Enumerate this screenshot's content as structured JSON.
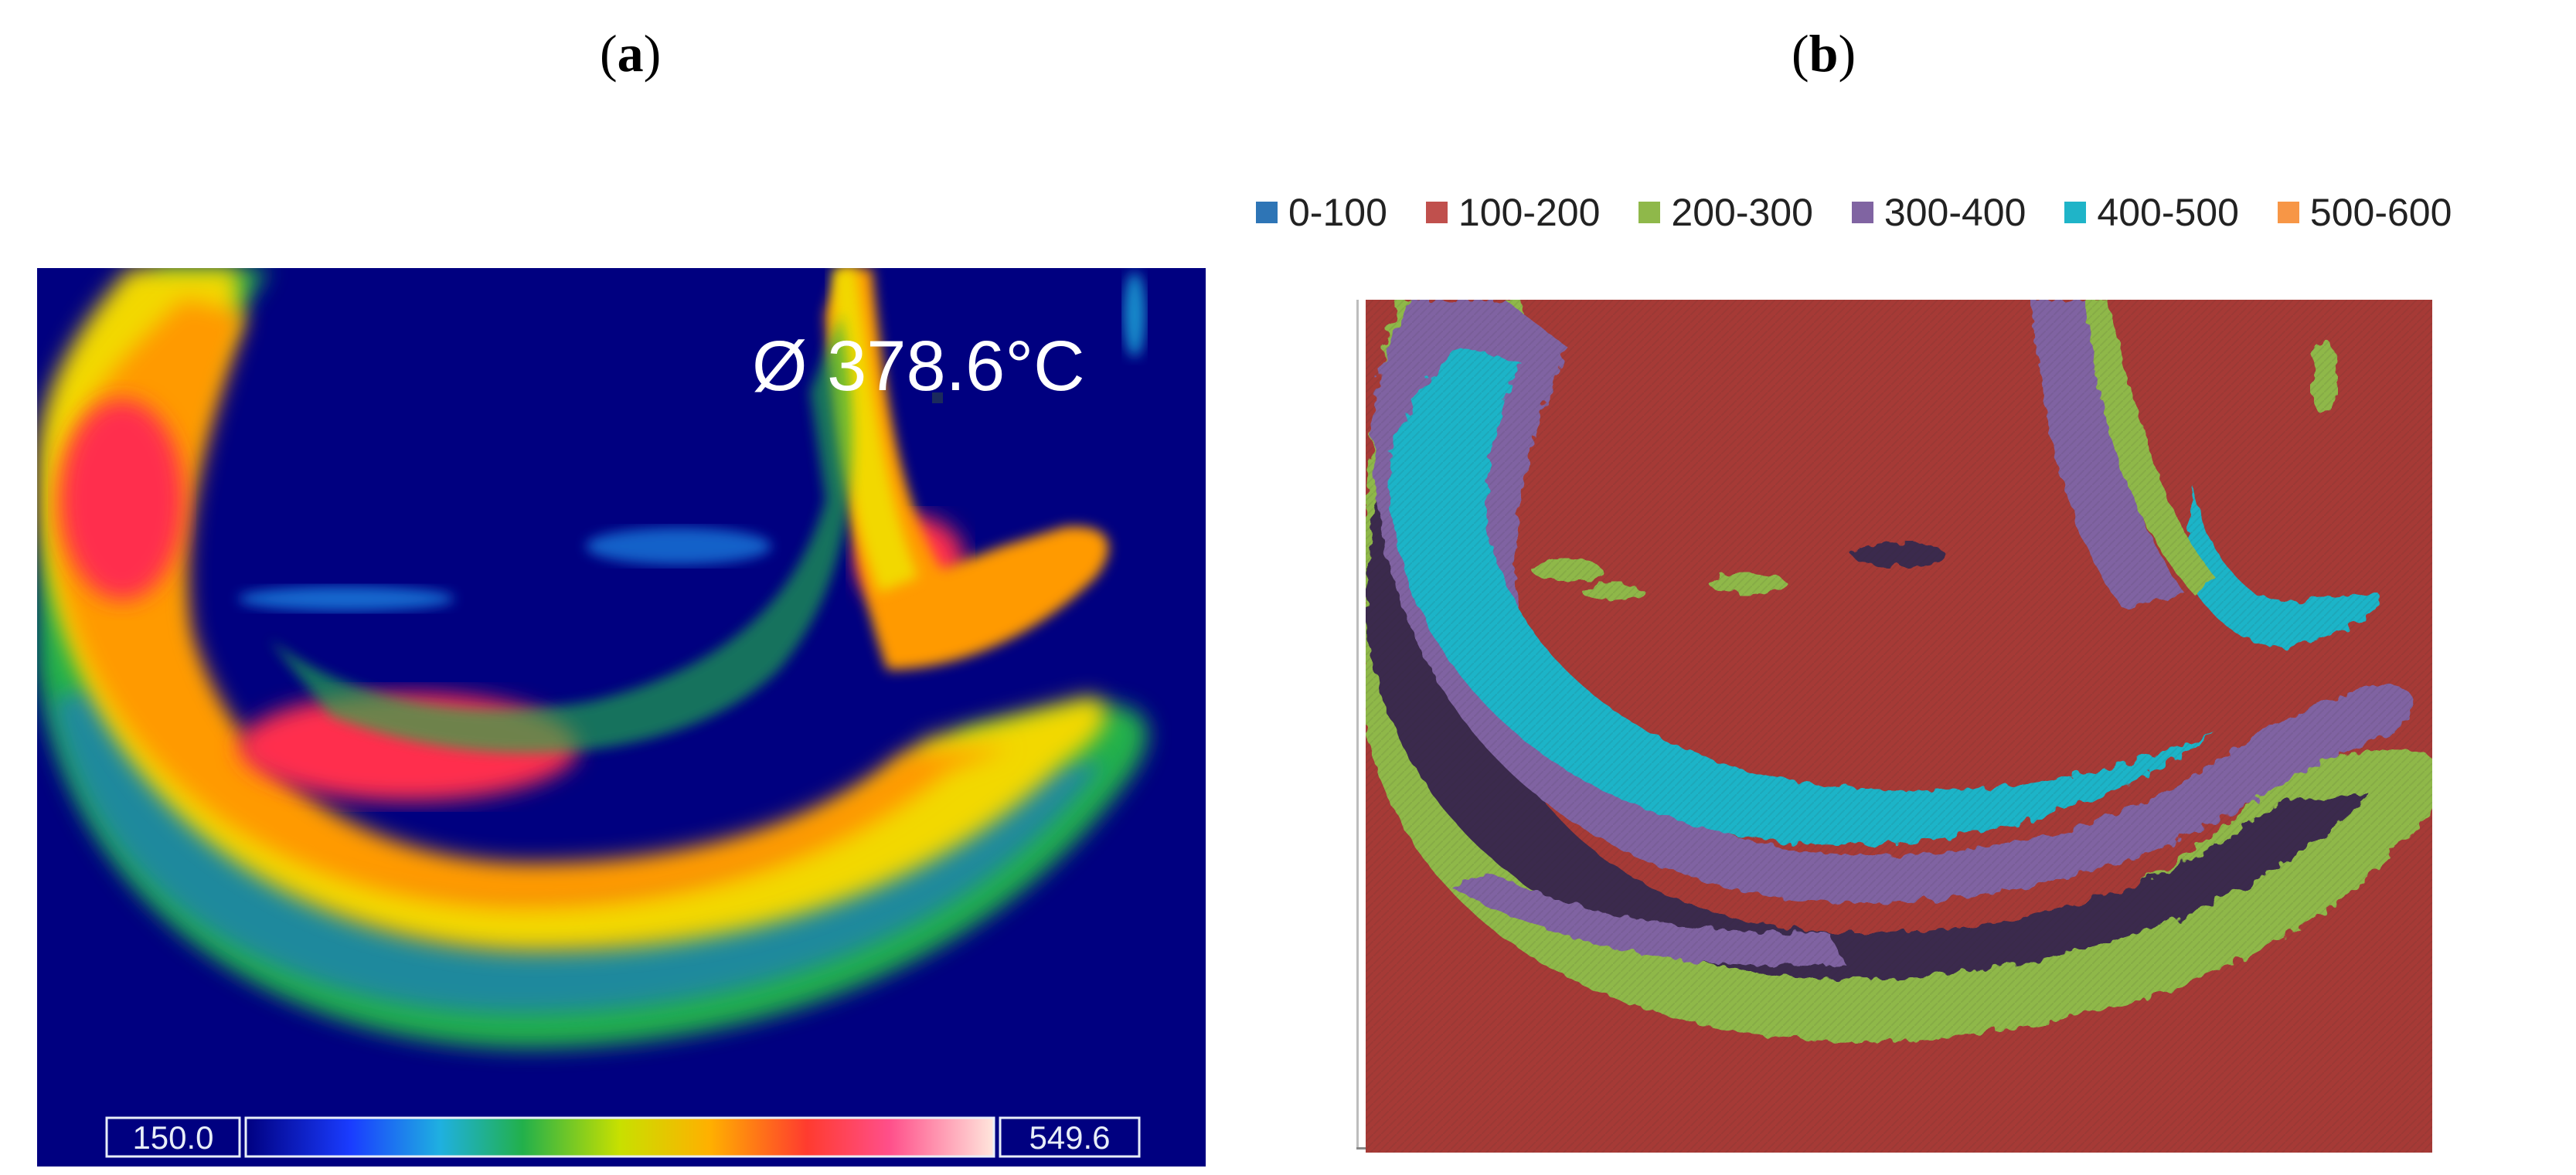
{
  "panels": {
    "a": {
      "label_open": "(",
      "label_letter": "a",
      "label_close": ")"
    },
    "b": {
      "label_open": "(",
      "label_letter": "b",
      "label_close": ")"
    }
  },
  "thermal": {
    "readout": "Ø 378.6°C",
    "scale_min": "150.0",
    "scale_max": "549.6",
    "background_color": "#000080",
    "palette": [
      "#000080",
      "#1a3cff",
      "#1fb0e0",
      "#22b04b",
      "#8fd400",
      "#f2e000",
      "#ff9a00",
      "#ff3b2f",
      "#ff4f8a",
      "#ffd9d0"
    ]
  },
  "legend": {
    "items": [
      {
        "label": "0-100",
        "color": "#2e75b6"
      },
      {
        "label": "100-200",
        "color": "#c0504d"
      },
      {
        "label": "200-300",
        "color": "#8fb84a"
      },
      {
        "label": "300-400",
        "color": "#8064a2"
      },
      {
        "label": "400-500",
        "color": "#1fb4c8"
      },
      {
        "label": "500-600",
        "color": "#f79646"
      }
    ]
  },
  "classmap": {
    "background_color": "#a63a36",
    "band_colors": [
      "#8fb84a",
      "#8064a2",
      "#1fb4c8",
      "#3b2a4e"
    ]
  }
}
